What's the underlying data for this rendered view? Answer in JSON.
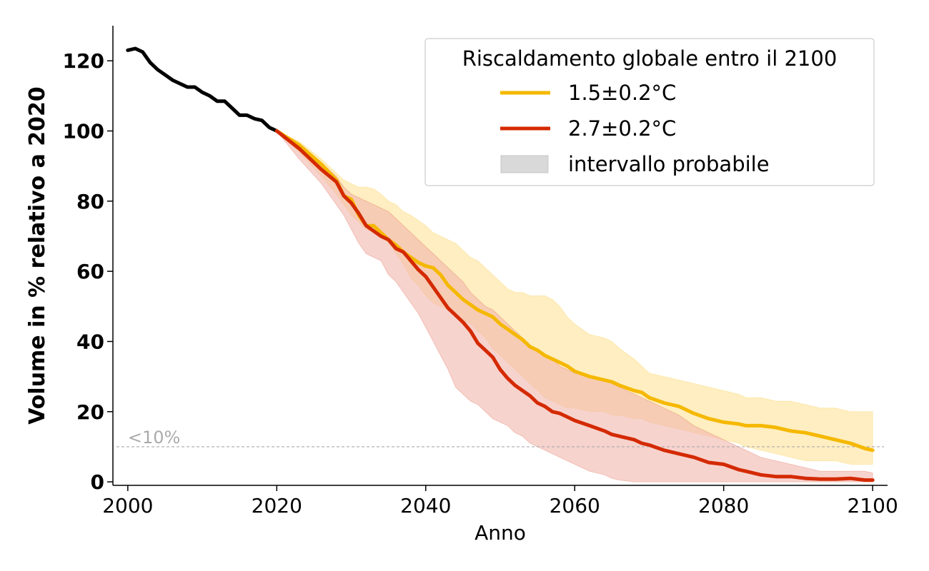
{
  "chart_data": {
    "type": "line",
    "xlabel": "Anno",
    "ylabel": "Volume in % relativo a 2020",
    "xlim": [
      1998,
      2102
    ],
    "ylim": [
      -1,
      130
    ],
    "x_ticks": [
      2000,
      2020,
      2040,
      2060,
      2080,
      2100
    ],
    "y_ticks": [
      0,
      20,
      40,
      60,
      80,
      100,
      120
    ],
    "grid": false,
    "legend": {
      "title": "Riscaldamento globale entro il 2100",
      "position": "top-right",
      "entries": [
        {
          "label": "1.5±0.2°C",
          "kind": "line",
          "color": "#f5b800"
        },
        {
          "label": "2.7±0.2°C",
          "kind": "line",
          "color": "#d42a00"
        },
        {
          "label": "intervallo probabile",
          "kind": "patch",
          "color": "#d9d9d9"
        }
      ]
    },
    "threshold": {
      "y": 10,
      "label": "<10%",
      "color": "#aaaaaa"
    },
    "historical": {
      "color": "#000000",
      "x": [
        2000,
        2001,
        2002,
        2003,
        2004,
        2005,
        2006,
        2007,
        2008,
        2009,
        2010,
        2011,
        2012,
        2013,
        2014,
        2015,
        2016,
        2017,
        2018,
        2019,
        2020
      ],
      "y": [
        123,
        123.5,
        122.5,
        119.5,
        117.5,
        116,
        114.5,
        113.5,
        112.5,
        112.5,
        111,
        110,
        108.5,
        108.5,
        106.5,
        104.5,
        104.5,
        103.5,
        103,
        101,
        100
      ]
    },
    "series": [
      {
        "name": "1.5±0.2°C",
        "color": "#f5b800",
        "band_color": "#fde7a6",
        "x": [
          2020,
          2023,
          2026,
          2028,
          2029,
          2030,
          2031,
          2032,
          2033,
          2034,
          2035,
          2036,
          2037,
          2038,
          2039,
          2040,
          2041,
          2042,
          2043,
          2044,
          2045,
          2046,
          2047,
          2048,
          2049,
          2050,
          2051,
          2052,
          2053,
          2054,
          2055,
          2056,
          2057,
          2058,
          2059,
          2060,
          2062,
          2064,
          2065,
          2066,
          2068,
          2069,
          2070,
          2072,
          2074,
          2076,
          2078,
          2080,
          2082,
          2083,
          2085,
          2087,
          2089,
          2091,
          2093,
          2095,
          2097,
          2099,
          2100
        ],
        "y": [
          100,
          96,
          90.5,
          86,
          81.5,
          80.5,
          76,
          73,
          73,
          71,
          69,
          67.5,
          65.5,
          64,
          62.5,
          61.5,
          61,
          59,
          56,
          54,
          52,
          50.5,
          49,
          48,
          47,
          45,
          43.5,
          42,
          40.5,
          38.5,
          37.5,
          36,
          35,
          34,
          33,
          31.5,
          30,
          29,
          28.5,
          27.5,
          26,
          25.5,
          24,
          22.5,
          21.5,
          19.5,
          18,
          17,
          16.5,
          16,
          16,
          15.5,
          14.5,
          14,
          13,
          12,
          11,
          9.5,
          9
        ],
        "upper": [
          100,
          97,
          92,
          88,
          86,
          85,
          84,
          84,
          83.5,
          82,
          80,
          79,
          77,
          76,
          74.5,
          73,
          71,
          70,
          69,
          68,
          66,
          64,
          63,
          61,
          59,
          57,
          55,
          54,
          54,
          53,
          53,
          53,
          52,
          50,
          47,
          45,
          42,
          41,
          40,
          38,
          35,
          33,
          31,
          30,
          29,
          28,
          27,
          26,
          25,
          24,
          24,
          23,
          23,
          22,
          21,
          21,
          20,
          20,
          20
        ],
        "lower": [
          100,
          94,
          87,
          82,
          79,
          76,
          74,
          72,
          71,
          70,
          68,
          65,
          62,
          58,
          56,
          53,
          51,
          50,
          49,
          48,
          46,
          45,
          43,
          41,
          38,
          36,
          34,
          32,
          30,
          28,
          26,
          24,
          23,
          22,
          21,
          21,
          20,
          20,
          19,
          19,
          18,
          18,
          17,
          16,
          15,
          14,
          13,
          12,
          11,
          10,
          9,
          8,
          7,
          6,
          6,
          6,
          5,
          5,
          5
        ]
      },
      {
        "name": "2.7±0.2°C",
        "color": "#d42a00",
        "band_color": "#f2b6ad",
        "x": [
          2020,
          2023,
          2026,
          2028,
          2029,
          2030,
          2031,
          2032,
          2033,
          2034,
          2035,
          2036,
          2037,
          2038,
          2039,
          2040,
          2041,
          2042,
          2043,
          2044,
          2045,
          2046,
          2047,
          2048,
          2049,
          2050,
          2051,
          2052,
          2053,
          2054,
          2055,
          2056,
          2057,
          2058,
          2059,
          2060,
          2062,
          2064,
          2065,
          2066,
          2068,
          2069,
          2070,
          2072,
          2074,
          2076,
          2078,
          2080,
          2082,
          2083,
          2085,
          2087,
          2089,
          2091,
          2093,
          2095,
          2097,
          2099,
          2100
        ],
        "y": [
          100,
          95,
          89,
          85.5,
          81.5,
          79.5,
          76.5,
          73,
          71.5,
          70,
          69,
          66.5,
          65.5,
          63,
          60.5,
          58.5,
          55.5,
          52.5,
          49.5,
          47.5,
          45.5,
          43,
          39.5,
          37.5,
          35.5,
          32,
          29.5,
          27.5,
          26,
          24.5,
          22.5,
          21.5,
          20,
          19.5,
          18.5,
          17.5,
          16,
          14.5,
          13.5,
          13,
          12,
          11,
          10.5,
          9,
          8,
          7,
          5.5,
          5,
          3.5,
          3,
          2,
          1.5,
          1.5,
          1,
          0.8,
          0.8,
          1,
          0.5,
          0.5
        ],
        "upper": [
          100,
          96,
          91,
          87,
          84,
          82,
          81,
          80,
          79,
          78,
          77,
          75,
          73,
          71,
          69,
          67,
          65,
          63,
          61,
          59,
          57,
          54,
          52,
          50,
          49,
          47,
          45,
          43,
          41,
          39,
          37,
          36,
          35,
          33,
          32,
          31,
          30,
          29,
          28,
          27,
          25,
          24,
          23,
          21,
          19,
          16,
          14,
          12,
          10,
          9,
          7,
          6,
          5,
          4,
          3,
          3,
          3,
          3,
          2.5
        ],
        "lower": [
          100,
          92,
          85,
          79,
          76,
          72,
          68,
          65,
          64,
          63,
          59,
          57,
          54,
          51,
          48,
          44,
          40,
          36,
          32,
          27,
          25,
          23,
          22,
          20,
          18,
          17,
          16,
          14,
          13,
          11,
          10,
          9,
          8,
          7,
          6,
          5,
          3,
          2,
          1,
          0.5,
          0,
          0,
          0,
          0,
          0,
          0,
          0,
          0,
          0,
          0,
          0,
          0,
          0,
          0,
          0,
          0,
          0,
          0,
          0
        ]
      }
    ]
  }
}
